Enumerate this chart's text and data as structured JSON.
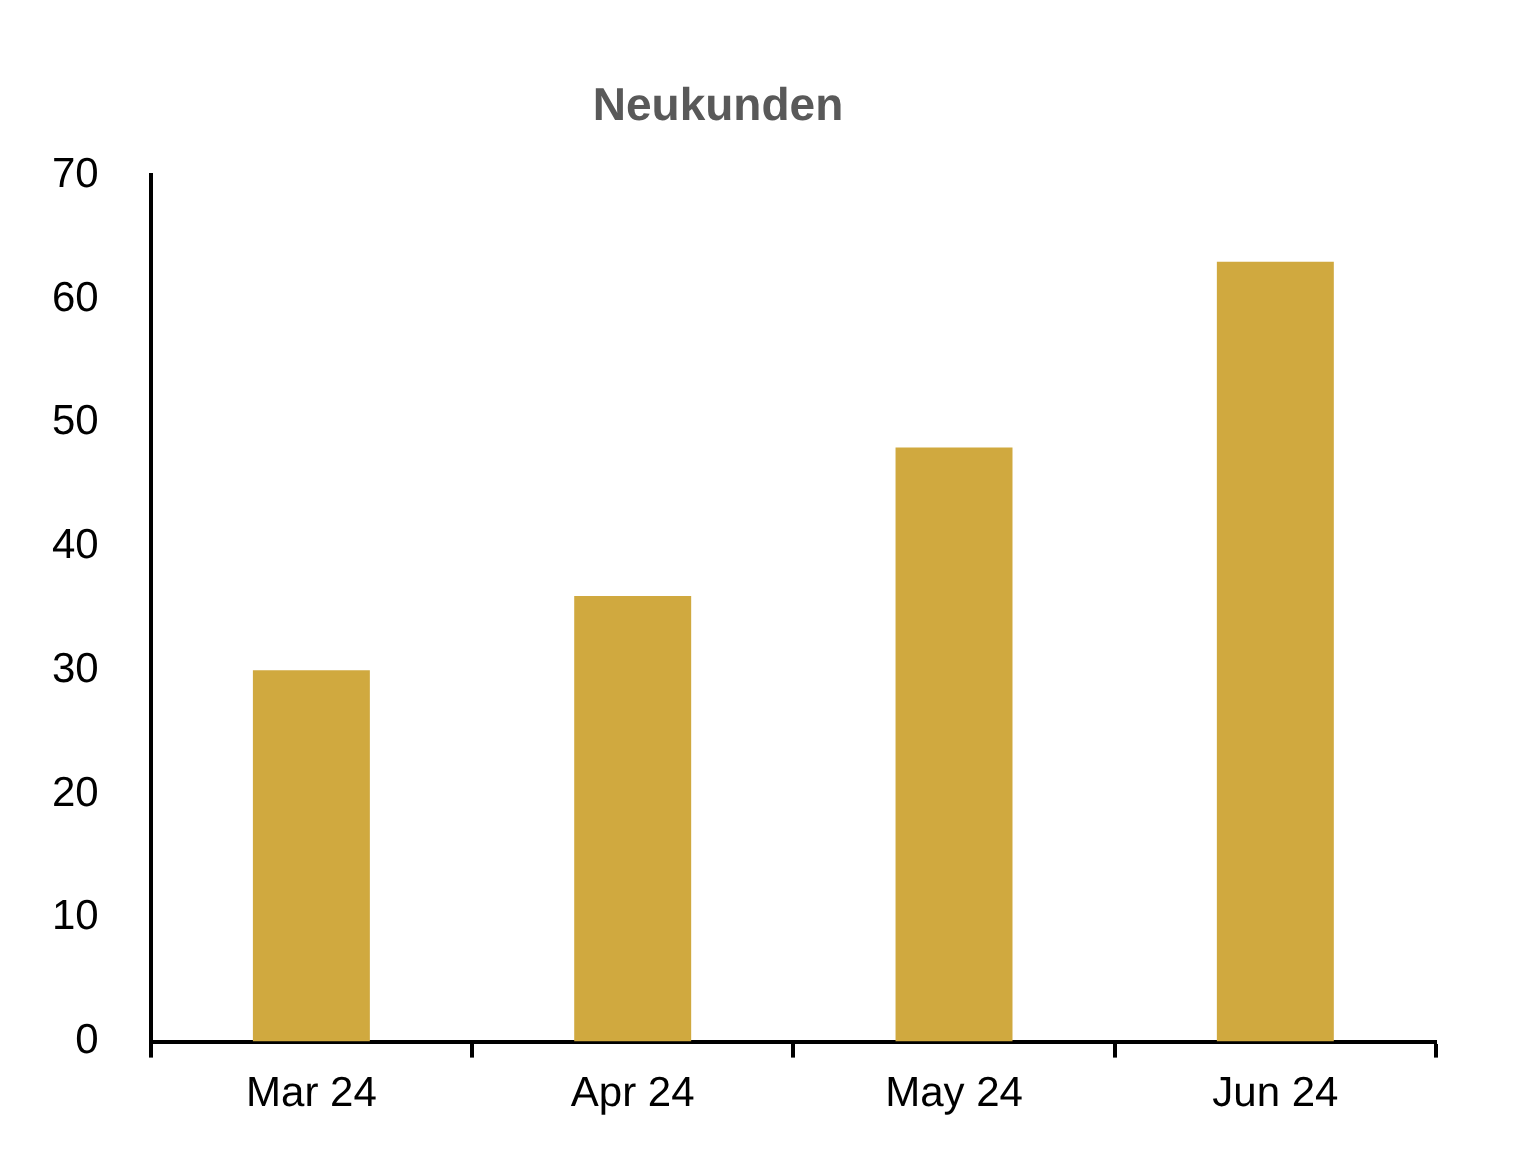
{
  "chart_data": {
    "type": "bar",
    "title": "Neukunden",
    "categories": [
      "Mar 24",
      "Apr 24",
      "May 24",
      "Jun 24"
    ],
    "values": [
      30,
      36,
      48,
      63
    ],
    "color": "#d0a93f",
    "ylim": [
      0,
      70
    ],
    "yticks": [
      0,
      10,
      20,
      30,
      40,
      50,
      60,
      70
    ],
    "grid": false,
    "legend": false
  }
}
